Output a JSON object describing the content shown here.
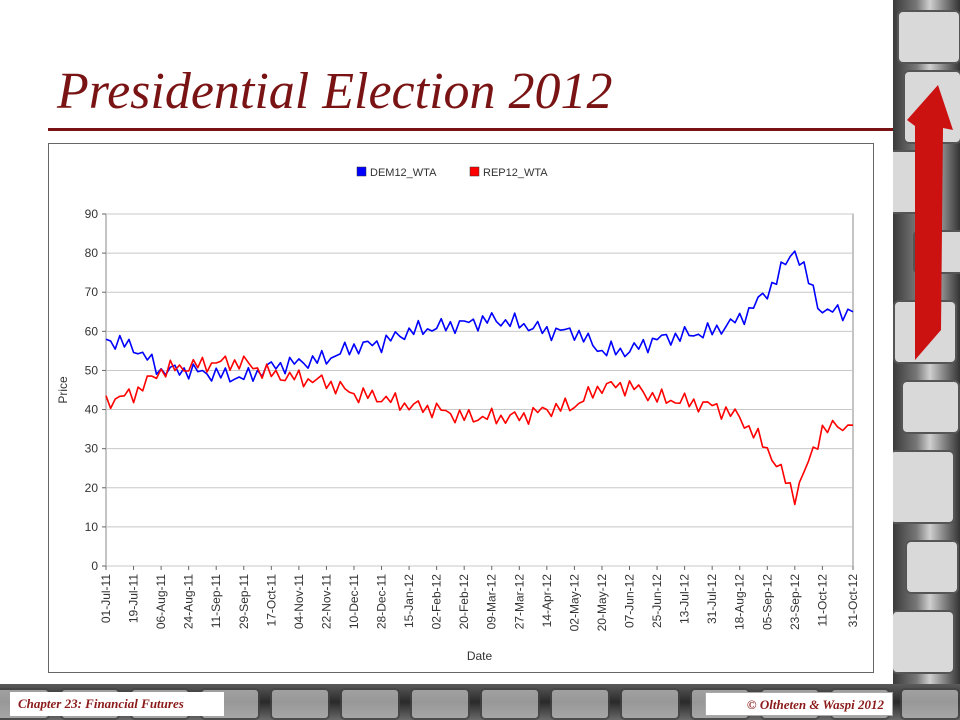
{
  "slide": {
    "title": "Presidential Election 2012",
    "footer_left": "Chapter 23: Financial Futures",
    "footer_right": "© Oltheten & Waspi 2012"
  },
  "colors": {
    "title": "#7a1414",
    "dem": "#0000ff",
    "rep": "#ff0000"
  },
  "chart_data": {
    "type": "line",
    "title": "",
    "xlabel": "Date",
    "ylabel": "Price",
    "ylim": [
      0,
      90
    ],
    "yticks": [
      0,
      10,
      20,
      30,
      40,
      50,
      60,
      70,
      80,
      90
    ],
    "grid": true,
    "legend": "top-center",
    "x_tick_labels": [
      "01-Jul-11",
      "19-Jul-11",
      "06-Aug-11",
      "24-Aug-11",
      "11-Sep-11",
      "29-Sep-11",
      "17-Oct-11",
      "04-Nov-11",
      "22-Nov-11",
      "10-Dec-11",
      "28-Dec-11",
      "15-Jan-12",
      "02-Feb-12",
      "20-Feb-12",
      "09-Mar-12",
      "27-Mar-12",
      "14-Apr-12",
      "02-May-12",
      "20-May-12",
      "07-Jun-12",
      "25-Jun-12",
      "13-Jul-12",
      "31-Jul-12",
      "18-Aug-12",
      "05-Sep-12",
      "23-Sep-12",
      "11-Oct-12",
      "31-Oct-12"
    ],
    "x": [
      "2011-07-01",
      "2011-07-19",
      "2011-08-06",
      "2011-08-24",
      "2011-09-11",
      "2011-09-29",
      "2011-10-17",
      "2011-11-04",
      "2011-11-22",
      "2011-12-10",
      "2011-12-28",
      "2012-01-15",
      "2012-02-02",
      "2012-02-20",
      "2012-03-09",
      "2012-03-27",
      "2012-04-14",
      "2012-05-02",
      "2012-05-20",
      "2012-06-07",
      "2012-06-25",
      "2012-07-13",
      "2012-07-31",
      "2012-08-18",
      "2012-09-05",
      "2012-09-23",
      "2012-10-11",
      "2012-10-31"
    ],
    "series": [
      {
        "name": "DEM12_WTA",
        "color": "#0000ff",
        "values": [
          58,
          56,
          50,
          50,
          49,
          48,
          51,
          52,
          53,
          56,
          57,
          60,
          61,
          62,
          63,
          62,
          60,
          60,
          55,
          55,
          58,
          59,
          60,
          63,
          70,
          81,
          65,
          65
        ]
      },
      {
        "name": "REP12_WTA",
        "color": "#ff0000",
        "values": [
          42,
          44,
          50,
          51,
          52,
          52,
          49,
          48,
          47,
          44,
          43,
          41,
          40,
          38,
          38,
          38,
          40,
          41,
          46,
          46,
          43,
          42,
          41,
          38,
          30,
          18,
          35,
          36
        ]
      }
    ]
  }
}
